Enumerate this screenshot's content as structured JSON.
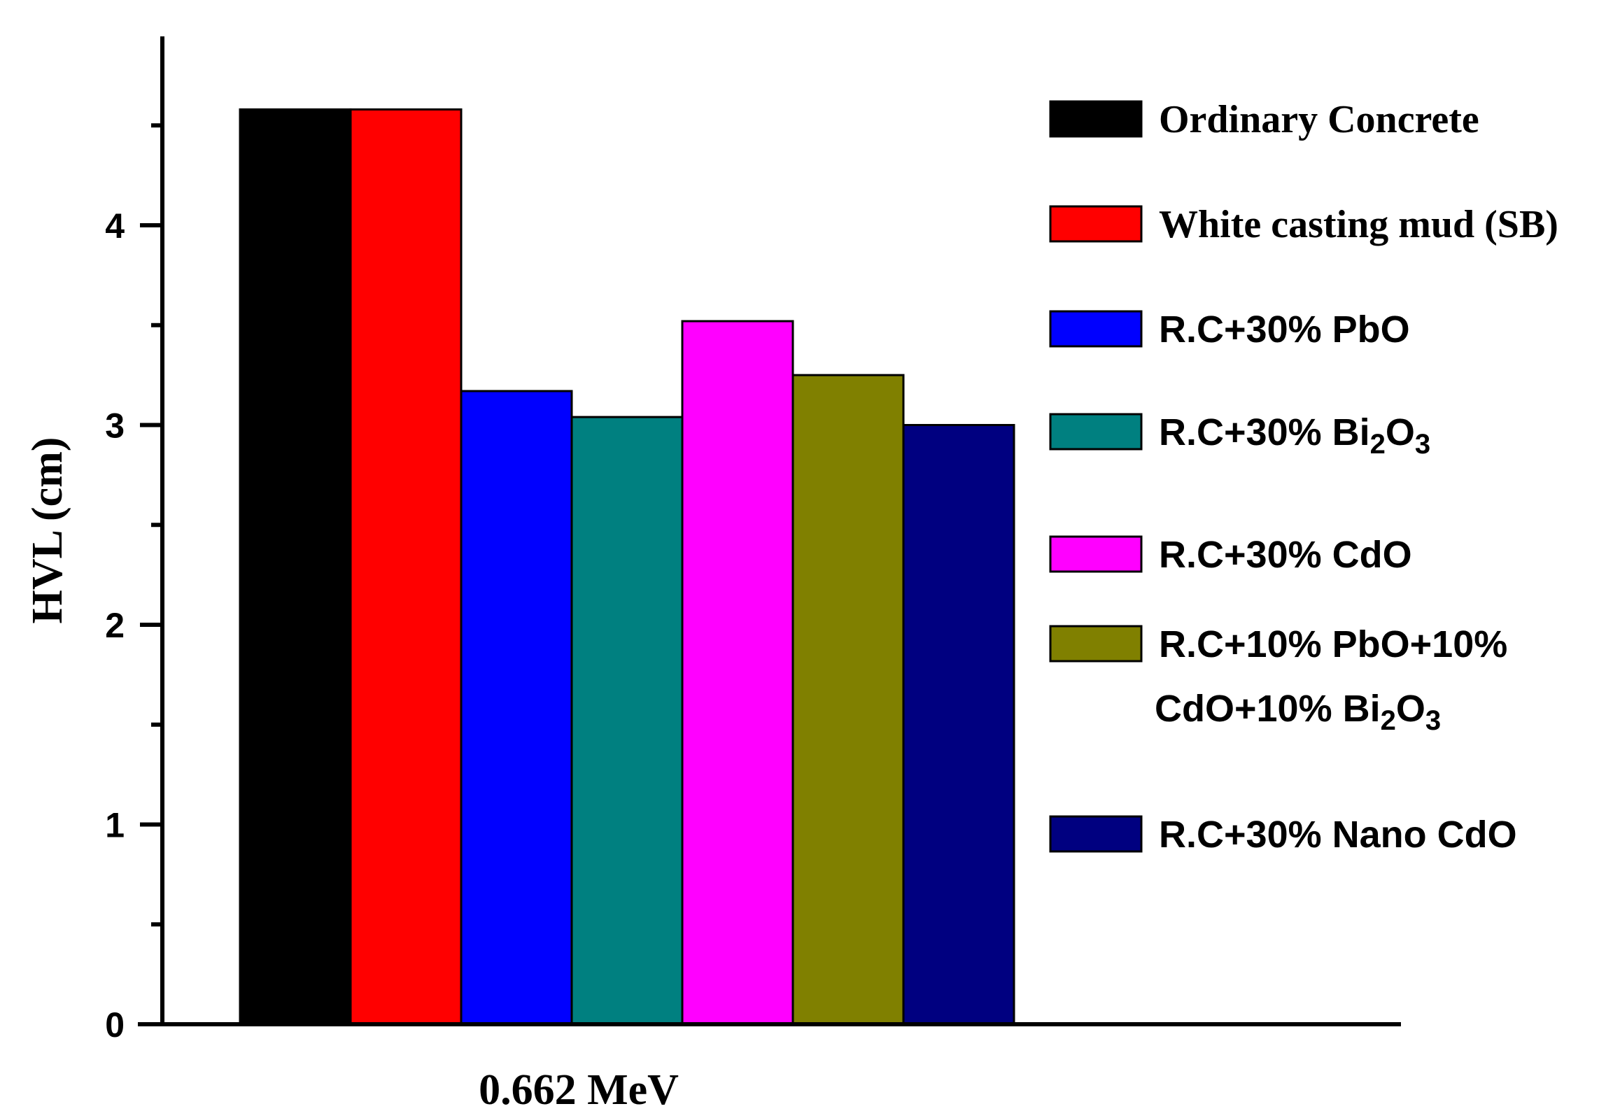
{
  "chart_data": {
    "type": "bar",
    "ylabel": "HVL (cm)",
    "xlabel": "",
    "categories": [
      "0.662 MeV"
    ],
    "ylim": [
      0,
      5
    ],
    "yticks": [
      0,
      1,
      2,
      3,
      4
    ],
    "grid": false,
    "legend_placement": "right",
    "series": [
      {
        "name": "Ordinary Concrete",
        "values": [
          4.58
        ],
        "color": "#000000",
        "font": "serif"
      },
      {
        "name": "White casting mud (SB)",
        "values": [
          4.58
        ],
        "color": "#ff0000",
        "font": "serif"
      },
      {
        "name": "R.C+30% PbO",
        "values": [
          3.17
        ],
        "color": "#0000ff",
        "font": "sans"
      },
      {
        "name": "R.C+30% Bi2O3",
        "values": [
          3.04
        ],
        "color": "#008080",
        "font": "sans",
        "label_parts": [
          [
            "R.C+30% Bi",
            ""
          ],
          [
            "2",
            "sub"
          ],
          [
            "O",
            ""
          ],
          [
            "3",
            "sub"
          ]
        ]
      },
      {
        "name": "R.C+30% CdO",
        "values": [
          3.52
        ],
        "color": "#ff00ff",
        "font": "sans"
      },
      {
        "name": "R.C+10% PbO+10% CdO+10% Bi2O3",
        "values": [
          3.25
        ],
        "color": "#808000",
        "font": "sans",
        "label_lines": [
          [
            [
              "R.C+10% PbO+10%",
              ""
            ]
          ],
          [
            [
              "CdO+10% Bi",
              ""
            ],
            [
              "2",
              "sub"
            ],
            [
              "O",
              ""
            ],
            [
              "3",
              "sub"
            ]
          ]
        ]
      },
      {
        "name": "R.C+30% Nano CdO",
        "values": [
          3.0
        ],
        "color": "#000080",
        "font": "sans"
      }
    ]
  }
}
